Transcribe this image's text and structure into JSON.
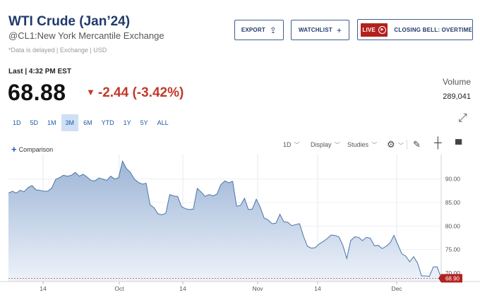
{
  "header": {
    "title": "WTI Crude (Jan’24)",
    "subtitle": "@CL1:New York Mercantile Exchange",
    "note": "*Data is delayed | Exchange | USD"
  },
  "actions": {
    "export_label": "EXPORT",
    "watchlist_label": "WATCHLIST",
    "live_label": "LIVE",
    "closing_bell_label": "CLOSING BELL: OVERTIME"
  },
  "quote": {
    "last": "Last | 4:32 PM EST",
    "price": "68.88",
    "change": "-2.44 (-3.42%)",
    "volume_label": "Volume",
    "volume_value": "289,041"
  },
  "ranges": [
    "1D",
    "5D",
    "1M",
    "3M",
    "6M",
    "YTD",
    "1Y",
    "5Y",
    "ALL"
  ],
  "active_range": "3M",
  "toolbar": {
    "comparison_label": "Comparison",
    "interval_label": "1D",
    "display_label": "Display",
    "studies_label": "Studies"
  },
  "colors": {
    "accent": "#1f3a6b",
    "negative": "#c0392b",
    "line": "#4a73a8",
    "fill_top": "#9db5d6",
    "fill_bottom": "#eef3fa",
    "price_tag": "#b3211e"
  },
  "chart_data": {
    "type": "area",
    "series": [
      {
        "values": [
          87.0,
          87.4,
          87.0,
          87.6,
          87.3,
          88.2,
          88.6,
          87.7,
          87.6,
          87.4,
          87.4,
          88.1,
          89.9,
          90.3,
          90.8,
          90.6,
          90.8,
          91.4,
          90.6,
          91.0,
          90.4,
          89.7,
          89.6,
          90.2,
          90.0,
          89.7,
          90.6,
          90.0,
          90.3,
          93.8,
          92.2,
          91.4,
          90.0,
          89.3,
          88.9,
          89.1,
          84.5,
          83.9,
          82.6,
          82.4,
          82.7,
          86.7,
          86.4,
          86.3,
          84.1,
          83.7,
          83.5,
          83.6,
          88.0,
          87.2,
          86.3,
          86.7,
          86.4,
          86.8,
          88.8,
          89.6,
          89.2,
          89.5,
          84.2,
          84.4,
          85.9,
          83.5,
          83.6,
          85.7,
          84.0,
          81.7,
          81.3,
          80.5,
          80.6,
          82.5,
          80.9,
          80.8,
          80.1,
          80.3,
          80.5,
          77.8,
          75.7,
          75.3,
          75.4,
          76.2,
          76.7,
          77.3,
          78.1,
          78.0,
          77.7,
          75.9,
          73.1,
          76.9,
          77.7,
          77.6,
          76.9,
          77.6,
          77.4,
          75.8,
          75.9,
          75.2,
          75.7,
          76.4,
          78.0,
          76.0,
          74.1,
          73.6,
          72.4,
          73.5,
          72.1,
          69.4,
          69.4,
          69.3,
          71.3,
          71.3,
          68.9
        ],
        "x_range": [
          "Aug 31",
          "Dec 7"
        ]
      }
    ],
    "x_ticks": [
      "14",
      "Oct",
      "14",
      "Nov",
      "14",
      "Dec"
    ],
    "y_ticks": [
      "90.00",
      "85.00",
      "80.00",
      "75.00",
      "70.00"
    ],
    "ylim": [
      68.2,
      95.2
    ],
    "last_value_label": "68.90",
    "grid": true,
    "y_axis_position": "right"
  }
}
